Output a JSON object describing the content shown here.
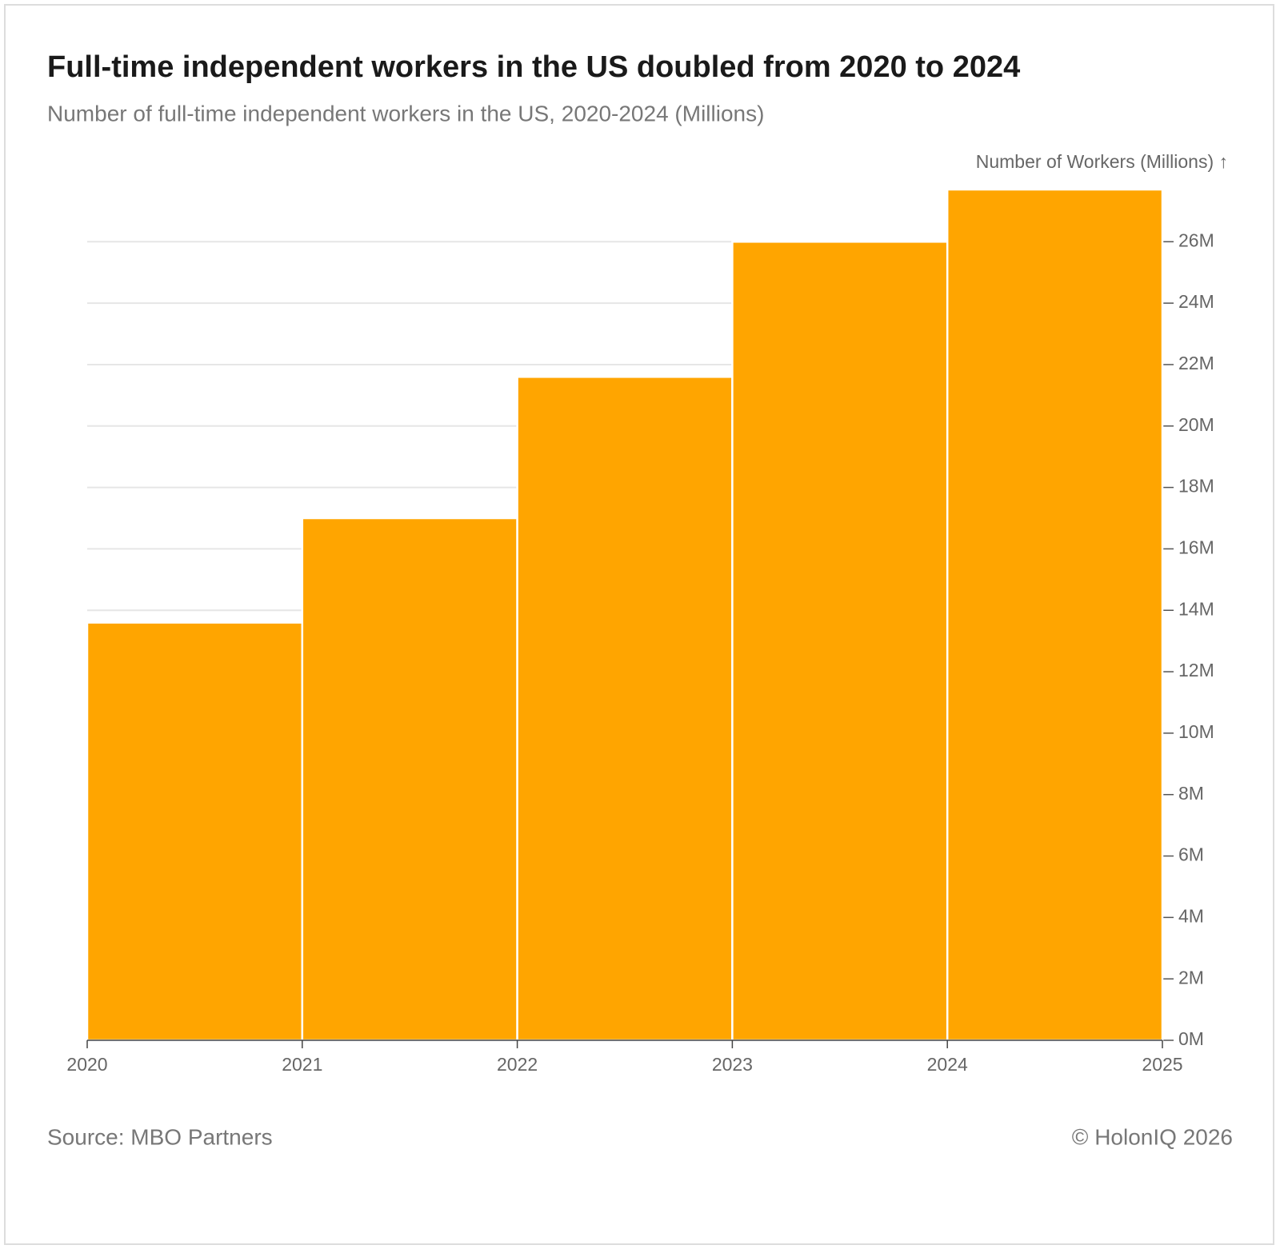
{
  "chart_data": {
    "type": "histogram",
    "title": "Full-time independent workers in the US doubled from 2020 to 2024",
    "subtitle": "Number of full-time independent workers in the US, 2020-2024 (Millions)",
    "y_label": "Number of Workers (Millions) ↑",
    "bins": [
      2020,
      2021,
      2022,
      2023,
      2024,
      2025
    ],
    "values": [
      13.6,
      17.0,
      21.6,
      26.0,
      27.7
    ],
    "color": "#ffa500",
    "xlim": [
      2020,
      2025
    ],
    "xticks": [
      2020,
      2021,
      2022,
      2023,
      2024,
      2025
    ],
    "ylim": [
      0,
      27.7
    ],
    "yticks": [
      {
        "value": 0,
        "label": "0M"
      },
      {
        "value": 2,
        "label": "2M"
      },
      {
        "value": 4,
        "label": "4M"
      },
      {
        "value": 6,
        "label": "6M"
      },
      {
        "value": 8,
        "label": "8M"
      },
      {
        "value": 10,
        "label": "10M"
      },
      {
        "value": 12,
        "label": "12M"
      },
      {
        "value": 14,
        "label": "14M"
      },
      {
        "value": 16,
        "label": "16M"
      },
      {
        "value": 18,
        "label": "18M"
      },
      {
        "value": 20,
        "label": "20M"
      },
      {
        "value": 22,
        "label": "22M"
      },
      {
        "value": 24,
        "label": "24M"
      },
      {
        "value": 26,
        "label": "26M"
      }
    ],
    "grid": true,
    "y_axis_side": "right",
    "source": "Source: MBO Partners",
    "credit": "© HolonIQ 2026"
  }
}
